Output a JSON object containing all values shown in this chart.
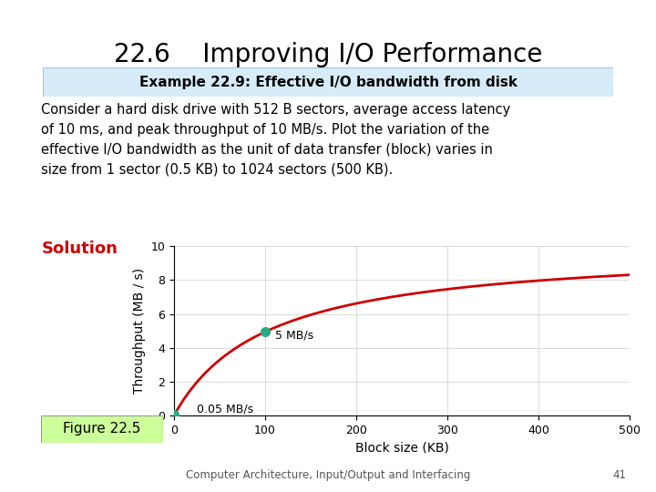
{
  "title": "22.6    Improving I/O Performance",
  "banner_text": "Example 22.9: Effective I/O bandwidth from disk",
  "body_text": "Consider a hard disk drive with 512 B sectors, average access latency\nof 10 ms, and peak throughput of 10 MB/s. Plot the variation of the\neffective I/O bandwidth as the unit of data transfer (block) varies in\nsize from 1 sector (0.5 KB) to 1024 sectors (500 KB).",
  "solution_label": "Solution",
  "figure_label": "Figure 22.5",
  "footer_text": "Computer Architecture, Input/Output and Interfacing",
  "footer_page": "41",
  "xlabel": "Block size (KB)",
  "ylabel": "Throughput (MB / s)",
  "xlim": [
    0,
    500
  ],
  "ylim": [
    0,
    10
  ],
  "xticks": [
    0,
    100,
    200,
    300,
    400,
    500
  ],
  "yticks": [
    0,
    2,
    4,
    6,
    8,
    10
  ],
  "access_latency_s": 0.01,
  "peak_throughput_MBps": 10,
  "x_start_KB": 0.001,
  "x_end_KB": 500,
  "point1_x_KB": 0.5,
  "point1_label": "0.05 MB/s",
  "point2_x_KB": 100,
  "point2_label": "5 MB/s",
  "curve_color": "#cc0000",
  "point_color": "#2aaa8a",
  "banner_bg": "#d6ecf8",
  "banner_border": "#a0c8e0",
  "figure_label_bg": "#ccff99",
  "solution_color": "#cc0000",
  "bg_color": "#ffffff",
  "grid_color": "#cccccc",
  "title_fontsize": 20,
  "banner_fontsize": 11,
  "body_fontsize": 10.5,
  "solution_fontsize": 13,
  "axis_label_fontsize": 10,
  "tick_fontsize": 9,
  "annotation_fontsize": 9,
  "footer_fontsize": 8.5,
  "figure_label_fontsize": 11
}
